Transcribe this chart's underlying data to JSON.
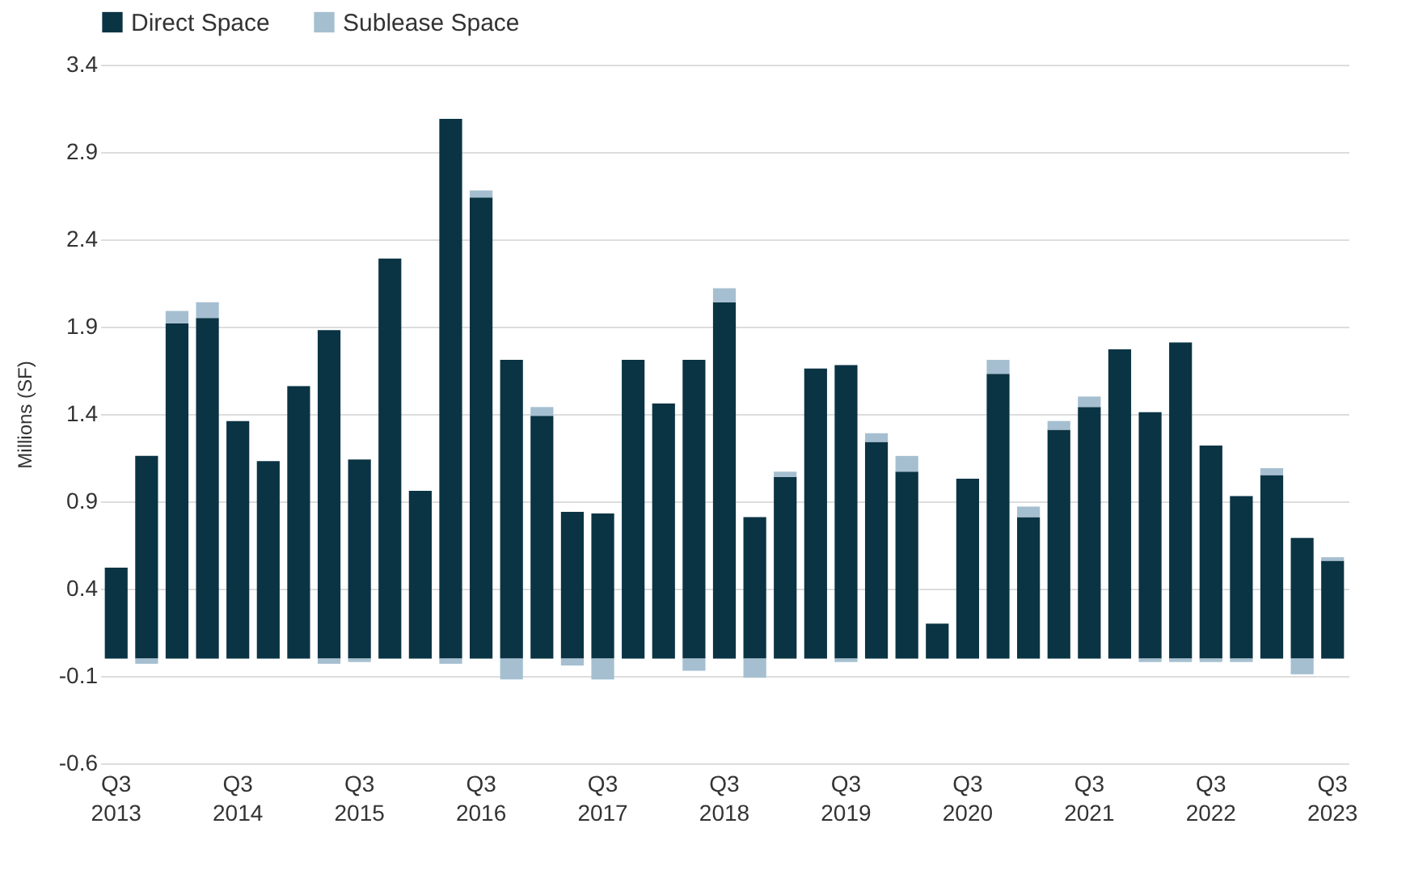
{
  "chart_data": {
    "type": "bar",
    "stacked": true,
    "ylabel": "Millions (SF)",
    "categories": [
      "Q3 2013",
      null,
      null,
      null,
      "Q3 2014",
      null,
      null,
      null,
      "Q3 2015",
      null,
      null,
      null,
      "Q3 2016",
      null,
      null,
      null,
      "Q3 2017",
      null,
      null,
      null,
      "Q3 2018",
      null,
      null,
      null,
      "Q3 2019",
      null,
      null,
      null,
      "Q3 2020",
      null,
      null,
      null,
      "Q3 2021",
      null,
      null,
      null,
      "Q3 2022",
      null,
      null,
      null,
      "Q3 2023"
    ],
    "series": [
      {
        "name": "Direct Space",
        "color": "#0a3444",
        "values": [
          0.52,
          1.16,
          1.92,
          1.95,
          1.36,
          1.13,
          1.56,
          1.88,
          1.14,
          2.29,
          0.96,
          3.09,
          2.64,
          1.71,
          1.39,
          0.84,
          0.83,
          1.71,
          1.46,
          1.71,
          2.04,
          0.81,
          1.04,
          1.66,
          1.68,
          1.24,
          1.07,
          0.2,
          1.03,
          1.63,
          0.81,
          1.31,
          1.44,
          1.77,
          1.41,
          1.81,
          1.22,
          0.93,
          1.05,
          0.69,
          0.56
        ]
      },
      {
        "name": "Sublease Space",
        "color": "#a5bfd0",
        "values": [
          0,
          -0.03,
          0.07,
          0.09,
          0,
          0,
          0,
          -0.03,
          -0.02,
          0,
          0,
          -0.03,
          0.04,
          -0.12,
          0.05,
          -0.04,
          -0.12,
          0,
          0,
          -0.07,
          0.08,
          -0.11,
          0.03,
          0,
          -0.02,
          0.05,
          0.09,
          0,
          0,
          0.08,
          0.06,
          0.05,
          0.06,
          0,
          -0.02,
          -0.02,
          -0.02,
          -0.02,
          0.04,
          -0.09,
          0.02
        ]
      }
    ],
    "ylim": [
      -0.6,
      3.4
    ],
    "yticks": [
      -0.6,
      -0.1,
      0.4,
      0.9,
      1.4,
      1.9,
      2.4,
      2.9,
      3.4
    ],
    "grid": "y",
    "legend": "top left"
  }
}
